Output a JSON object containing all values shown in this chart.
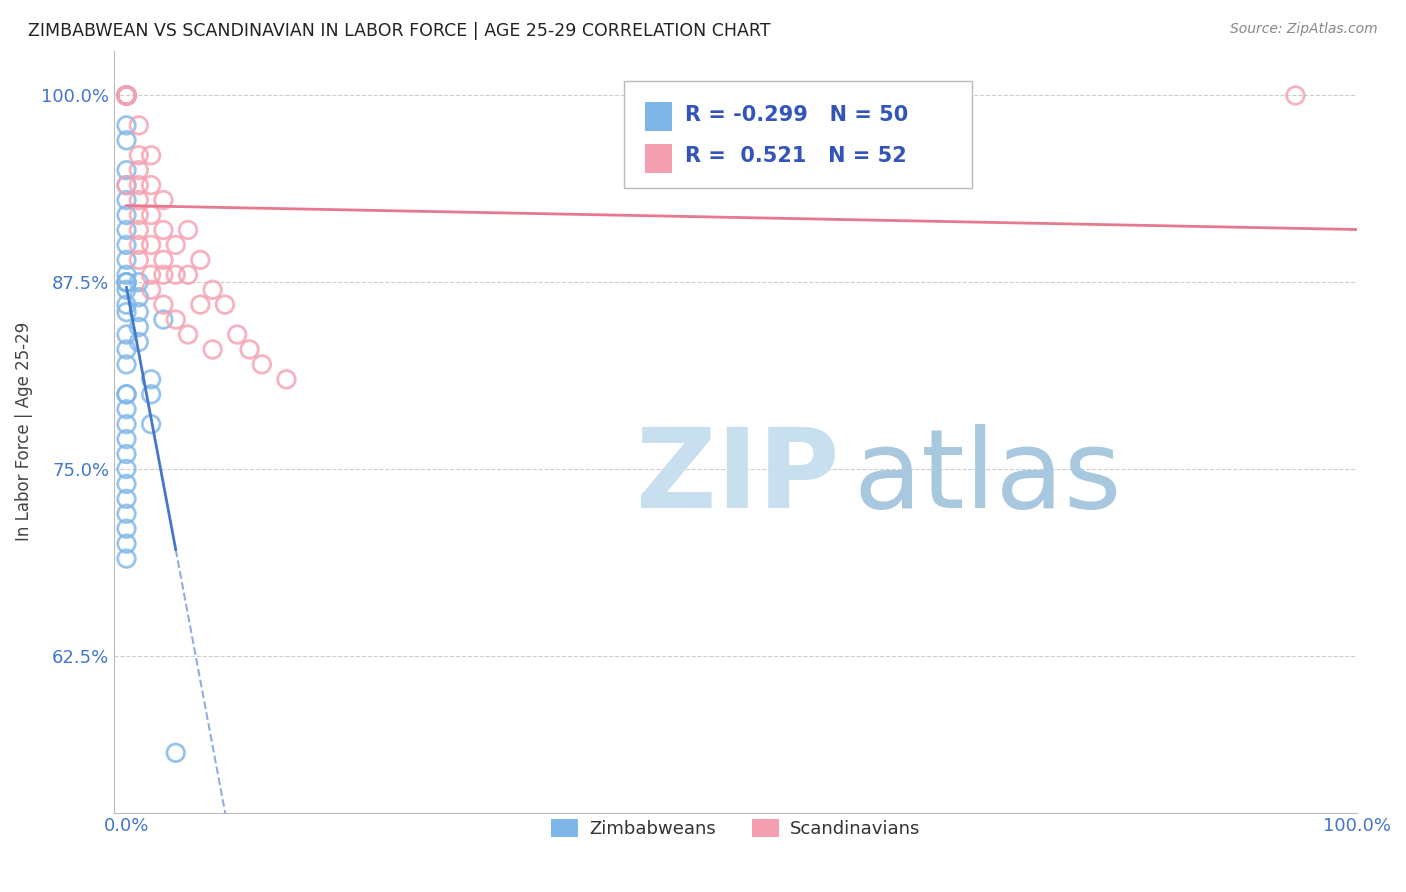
{
  "title": "ZIMBABWEAN VS SCANDINAVIAN IN LABOR FORCE | AGE 25-29 CORRELATION CHART",
  "source": "Source: ZipAtlas.com",
  "ylabel": "In Labor Force | Age 25-29",
  "xlim": [
    -0.01,
    1.0
  ],
  "ylim": [
    0.52,
    1.03
  ],
  "xtick_labels": [
    "0.0%",
    "100.0%"
  ],
  "ytick_labels": [
    "62.5%",
    "75.0%",
    "87.5%",
    "100.0%"
  ],
  "ytick_values": [
    0.625,
    0.75,
    0.875,
    1.0
  ],
  "xtick_values": [
    0.0,
    1.0
  ],
  "legend_zimbabwe": "Zimbabweans",
  "legend_scandinavian": "Scandinavians",
  "R_zimbabwe": -0.299,
  "N_zimbabwe": 50,
  "R_scandinavian": 0.521,
  "N_scandinavian": 52,
  "zimbabwe_color": "#7EB6E8",
  "scandinavian_color": "#F4A0B0",
  "trendline_zimbabwe_color": "#4477CC",
  "trendline_scandinavian_color": "#E87890",
  "watermark_zip_color": "#C8DFF0",
  "watermark_atlas_color": "#A8C8E0",
  "background_color": "#FFFFFF",
  "zimbabwe_x": [
    0.0,
    0.0,
    0.0,
    0.0,
    0.0,
    0.0,
    0.0,
    0.0,
    0.0,
    0.0,
    0.0,
    0.0,
    0.0,
    0.0,
    0.0,
    0.0,
    0.0,
    0.0,
    0.0,
    0.0,
    0.0,
    0.0,
    0.0,
    0.0,
    0.0,
    0.0,
    0.0,
    0.0,
    0.0,
    0.0,
    0.0,
    0.0,
    0.0,
    0.0,
    0.0,
    0.0,
    0.0,
    0.0,
    0.0,
    0.0,
    0.01,
    0.01,
    0.01,
    0.01,
    0.01,
    0.02,
    0.02,
    0.02,
    0.03,
    0.04
  ],
  "zimbabwe_y": [
    1.0,
    1.0,
    1.0,
    1.0,
    1.0,
    1.0,
    1.0,
    1.0,
    0.98,
    0.97,
    0.95,
    0.94,
    0.93,
    0.92,
    0.91,
    0.9,
    0.89,
    0.88,
    0.875,
    0.875,
    0.875,
    0.87,
    0.86,
    0.855,
    0.84,
    0.83,
    0.82,
    0.8,
    0.8,
    0.79,
    0.78,
    0.77,
    0.76,
    0.75,
    0.74,
    0.73,
    0.72,
    0.71,
    0.7,
    0.69,
    0.875,
    0.865,
    0.855,
    0.845,
    0.835,
    0.81,
    0.8,
    0.78,
    0.85,
    0.56
  ],
  "scandinavian_x": [
    0.0,
    0.0,
    0.0,
    0.0,
    0.0,
    0.0,
    0.0,
    0.0,
    0.0,
    0.0,
    0.0,
    0.0,
    0.0,
    0.0,
    0.0,
    0.0,
    0.01,
    0.01,
    0.01,
    0.01,
    0.01,
    0.01,
    0.01,
    0.01,
    0.01,
    0.02,
    0.02,
    0.02,
    0.02,
    0.02,
    0.02,
    0.03,
    0.03,
    0.03,
    0.03,
    0.03,
    0.04,
    0.04,
    0.04,
    0.05,
    0.05,
    0.05,
    0.06,
    0.06,
    0.07,
    0.07,
    0.08,
    0.09,
    0.1,
    0.11,
    0.13,
    0.95
  ],
  "scandinavian_y": [
    1.0,
    1.0,
    1.0,
    1.0,
    1.0,
    1.0,
    1.0,
    1.0,
    1.0,
    1.0,
    1.0,
    1.0,
    1.0,
    1.0,
    1.0,
    0.94,
    0.98,
    0.96,
    0.95,
    0.94,
    0.93,
    0.92,
    0.91,
    0.9,
    0.89,
    0.96,
    0.94,
    0.92,
    0.9,
    0.88,
    0.87,
    0.93,
    0.91,
    0.89,
    0.88,
    0.86,
    0.9,
    0.88,
    0.85,
    0.91,
    0.88,
    0.84,
    0.89,
    0.86,
    0.87,
    0.83,
    0.86,
    0.84,
    0.83,
    0.82,
    0.81,
    1.0
  ]
}
